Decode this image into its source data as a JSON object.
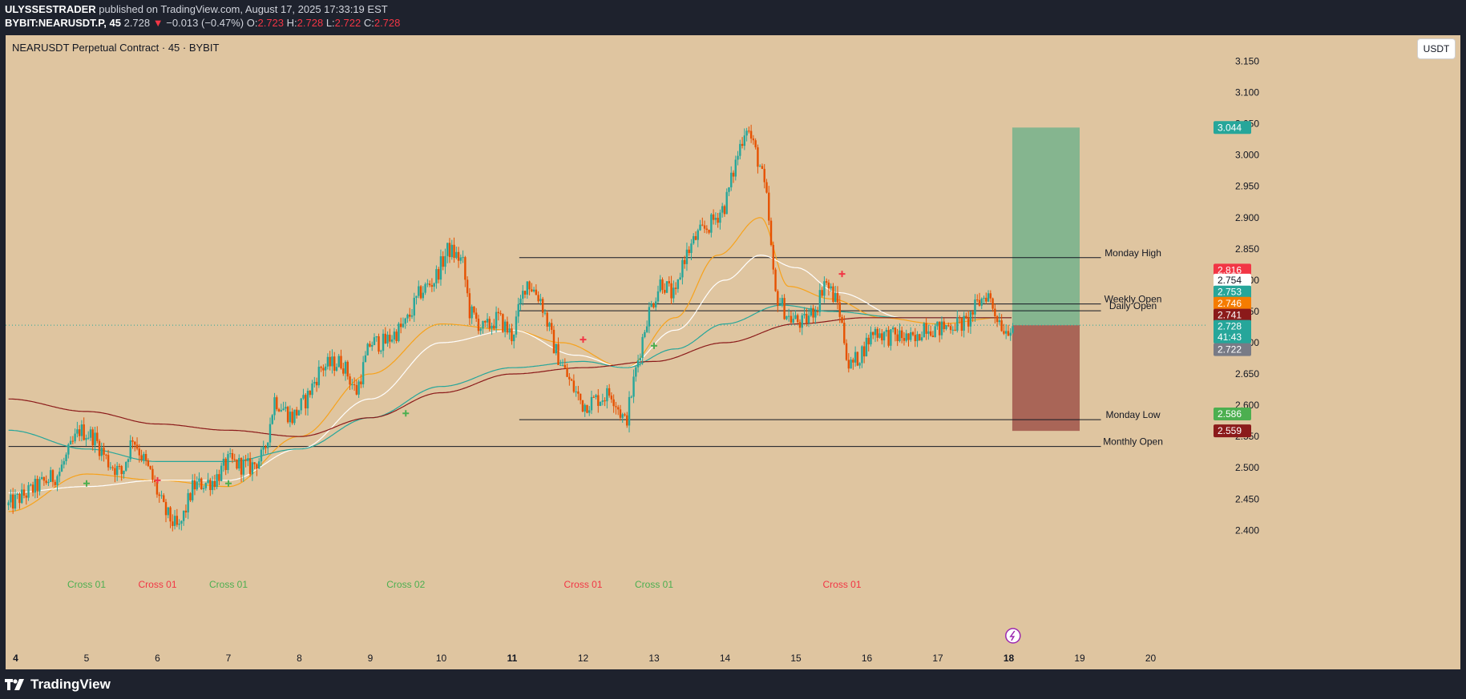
{
  "header": {
    "publisher": "ULYSSESTRADER",
    "published_text": "published on TradingView.com, August 17, 2025 17:33:19 EST",
    "symbol": "BYBIT:NEARUSDT.P, 45",
    "price": "2.728",
    "change_arrow": "▼",
    "change": "−0.013 (−0.47%)",
    "o_label": "O:",
    "o_value": "2.723",
    "h_label": "H:",
    "h_value": "2.728",
    "l_label": "L:",
    "l_value": "2.722",
    "c_label": "C:",
    "c_value": "2.728"
  },
  "chart_title": "NEARUSDT Perpetual Contract · 45 · BYBIT",
  "currency_button": "USDT",
  "branding": "TradingView",
  "colors": {
    "background": "#dfc5a0",
    "up": "#26a69a",
    "down": "#e65100",
    "ma_orange": "#f7a21b",
    "ma_white": "#ffffff",
    "ma_teal": "#26a69a",
    "ma_maroon": "#8b1a1a",
    "cross_up": "#4caf50",
    "cross_down": "#f23645",
    "target_zone": "#7bb38d",
    "stop_zone": "#a35a4f"
  },
  "chart_data": {
    "type": "candlestick",
    "y_range": [
      2.37,
      3.18
    ],
    "y_ticks": [
      "3.150",
      "3.100",
      "3.050",
      "3.000",
      "2.950",
      "2.900",
      "2.850",
      "2.800",
      "2.750",
      "2.700",
      "2.650",
      "2.600",
      "2.550",
      "2.500",
      "2.450",
      "2.400"
    ],
    "x_ticks": [
      {
        "label": "4",
        "day": 4,
        "bold": true
      },
      {
        "label": "5",
        "day": 5
      },
      {
        "label": "6",
        "day": 6
      },
      {
        "label": "7",
        "day": 7
      },
      {
        "label": "8",
        "day": 8
      },
      {
        "label": "9",
        "day": 9
      },
      {
        "label": "10",
        "day": 10
      },
      {
        "label": "11",
        "day": 11,
        "bold": true
      },
      {
        "label": "12",
        "day": 12
      },
      {
        "label": "13",
        "day": 13
      },
      {
        "label": "14",
        "day": 14
      },
      {
        "label": "15",
        "day": 15
      },
      {
        "label": "16",
        "day": 16
      },
      {
        "label": "17",
        "day": 17
      },
      {
        "label": "18",
        "day": 18,
        "bold": true
      },
      {
        "label": "19",
        "day": 19
      },
      {
        "label": "20",
        "day": 20
      }
    ],
    "price_path": [
      [
        3.9,
        2.44
      ],
      [
        4.3,
        2.47
      ],
      [
        4.6,
        2.49
      ],
      [
        4.9,
        2.56
      ],
      [
        5.1,
        2.55
      ],
      [
        5.3,
        2.51
      ],
      [
        5.5,
        2.49
      ],
      [
        5.65,
        2.55
      ],
      [
        5.9,
        2.49
      ],
      [
        6.1,
        2.43
      ],
      [
        6.3,
        2.4
      ],
      [
        6.5,
        2.47
      ],
      [
        6.8,
        2.48
      ],
      [
        7.0,
        2.51
      ],
      [
        7.3,
        2.5
      ],
      [
        7.5,
        2.52
      ],
      [
        7.65,
        2.61
      ],
      [
        7.9,
        2.58
      ],
      [
        8.1,
        2.61
      ],
      [
        8.3,
        2.66
      ],
      [
        8.6,
        2.67
      ],
      [
        8.8,
        2.62
      ],
      [
        9.0,
        2.7
      ],
      [
        9.2,
        2.7
      ],
      [
        9.5,
        2.73
      ],
      [
        9.7,
        2.78
      ],
      [
        9.9,
        2.8
      ],
      [
        10.1,
        2.85
      ],
      [
        10.3,
        2.83
      ],
      [
        10.4,
        2.75
      ],
      [
        10.6,
        2.72
      ],
      [
        10.8,
        2.74
      ],
      [
        11.0,
        2.71
      ],
      [
        11.2,
        2.8
      ],
      [
        11.4,
        2.77
      ],
      [
        11.6,
        2.69
      ],
      [
        11.8,
        2.64
      ],
      [
        12.0,
        2.6
      ],
      [
        12.2,
        2.61
      ],
      [
        12.4,
        2.62
      ],
      [
        12.6,
        2.57
      ],
      [
        12.75,
        2.66
      ],
      [
        12.9,
        2.74
      ],
      [
        13.1,
        2.8
      ],
      [
        13.3,
        2.77
      ],
      [
        13.4,
        2.83
      ],
      [
        13.6,
        2.87
      ],
      [
        13.8,
        2.89
      ],
      [
        14.0,
        2.92
      ],
      [
        14.2,
        3.01
      ],
      [
        14.3,
        3.05
      ],
      [
        14.5,
        2.98
      ],
      [
        14.6,
        2.92
      ],
      [
        14.7,
        2.78
      ],
      [
        14.9,
        2.74
      ],
      [
        15.1,
        2.73
      ],
      [
        15.3,
        2.76
      ],
      [
        15.4,
        2.8
      ],
      [
        15.6,
        2.76
      ],
      [
        15.75,
        2.66
      ],
      [
        15.9,
        2.68
      ],
      [
        16.1,
        2.72
      ],
      [
        16.3,
        2.71
      ],
      [
        16.5,
        2.71
      ],
      [
        16.7,
        2.7
      ],
      [
        16.8,
        2.73
      ],
      [
        17.0,
        2.72
      ],
      [
        17.2,
        2.73
      ],
      [
        17.4,
        2.73
      ],
      [
        17.55,
        2.76
      ],
      [
        17.7,
        2.78
      ],
      [
        17.8,
        2.75
      ],
      [
        17.95,
        2.72
      ],
      [
        18.05,
        2.73
      ]
    ],
    "series": [
      {
        "name": "",
        "color": "#f7a21b",
        "points": [
          [
            3.9,
            2.43
          ],
          [
            5.0,
            2.49
          ],
          [
            6.0,
            2.48
          ],
          [
            7.0,
            2.47
          ],
          [
            8.0,
            2.55
          ],
          [
            9.0,
            2.65
          ],
          [
            10.0,
            2.73
          ],
          [
            11.0,
            2.72
          ],
          [
            11.7,
            2.7
          ],
          [
            12.6,
            2.66
          ],
          [
            13.3,
            2.74
          ],
          [
            13.9,
            2.84
          ],
          [
            14.5,
            2.9
          ],
          [
            14.9,
            2.79
          ],
          [
            15.5,
            2.77
          ],
          [
            16.2,
            2.74
          ],
          [
            17.0,
            2.73
          ],
          [
            17.9,
            2.74
          ],
          [
            18.05,
            2.74
          ]
        ]
      },
      {
        "name": "",
        "color": "#ffffff",
        "points": [
          [
            3.9,
            2.46
          ],
          [
            5.0,
            2.47
          ],
          [
            6.0,
            2.48
          ],
          [
            7.0,
            2.48
          ],
          [
            8.0,
            2.53
          ],
          [
            9.0,
            2.61
          ],
          [
            10.0,
            2.7
          ],
          [
            11.0,
            2.72
          ],
          [
            11.9,
            2.68
          ],
          [
            12.6,
            2.66
          ],
          [
            13.3,
            2.72
          ],
          [
            14.0,
            2.8
          ],
          [
            14.5,
            2.84
          ],
          [
            15.0,
            2.82
          ],
          [
            15.6,
            2.78
          ],
          [
            16.5,
            2.74
          ],
          [
            17.5,
            2.74
          ],
          [
            18.05,
            2.74
          ]
        ]
      },
      {
        "name": "",
        "color": "#26a69a",
        "points": [
          [
            3.9,
            2.56
          ],
          [
            5.0,
            2.53
          ],
          [
            6.0,
            2.51
          ],
          [
            7.0,
            2.51
          ],
          [
            8.0,
            2.53
          ],
          [
            9.0,
            2.58
          ],
          [
            10.0,
            2.63
          ],
          [
            11.0,
            2.66
          ],
          [
            12.0,
            2.67
          ],
          [
            12.6,
            2.66
          ],
          [
            13.3,
            2.69
          ],
          [
            14.0,
            2.73
          ],
          [
            14.8,
            2.76
          ],
          [
            15.5,
            2.75
          ],
          [
            16.5,
            2.74
          ],
          [
            17.5,
            2.74
          ],
          [
            18.05,
            2.74
          ]
        ]
      },
      {
        "name": "",
        "color": "#8b1a1a",
        "points": [
          [
            3.9,
            2.61
          ],
          [
            5.0,
            2.59
          ],
          [
            6.0,
            2.57
          ],
          [
            7.0,
            2.56
          ],
          [
            8.0,
            2.55
          ],
          [
            9.0,
            2.58
          ],
          [
            10.0,
            2.62
          ],
          [
            11.0,
            2.65
          ],
          [
            12.0,
            2.66
          ],
          [
            13.0,
            2.67
          ],
          [
            14.0,
            2.7
          ],
          [
            15.0,
            2.73
          ],
          [
            16.0,
            2.74
          ],
          [
            17.0,
            2.74
          ],
          [
            18.05,
            2.74
          ]
        ]
      }
    ],
    "horizontal_levels": [
      {
        "label": "Monday High",
        "price": 2.836,
        "from_day": 11.1,
        "to_day": 19.3
      },
      {
        "label": "Weekly Open",
        "price": 2.762,
        "from_day": 11.1,
        "to_day": 19.3
      },
      {
        "label": "Daily Open",
        "price": 2.751,
        "from_day": 11.1,
        "to_day": 19.3
      },
      {
        "label": "Monday Low",
        "price": 2.577,
        "from_day": 11.1,
        "to_day": 19.3
      },
      {
        "label": "Monthly Open",
        "price": 2.534,
        "from_day": 3.9,
        "to_day": 19.3
      }
    ],
    "position": {
      "entry": 2.728,
      "target": 3.044,
      "stop": 2.559,
      "from_day": 18.05,
      "to_day": 19.0
    },
    "cross_labels": [
      {
        "text": "Cross 01",
        "day": 5.0,
        "dir": "up"
      },
      {
        "text": "Cross 01",
        "day": 6.0,
        "dir": "down"
      },
      {
        "text": "Cross 01",
        "day": 7.0,
        "dir": "up"
      },
      {
        "text": "Cross 02",
        "day": 9.5,
        "dir": "up"
      },
      {
        "text": "Cross 01",
        "day": 12.0,
        "dir": "down"
      },
      {
        "text": "Cross 01",
        "day": 13.0,
        "dir": "up"
      },
      {
        "text": "Cross 01",
        "day": 15.65,
        "dir": "down"
      }
    ],
    "cross_markers": [
      {
        "day": 5.0,
        "price": 2.475,
        "dir": "up"
      },
      {
        "day": 6.0,
        "price": 2.48,
        "dir": "down"
      },
      {
        "day": 7.0,
        "price": 2.475,
        "dir": "up"
      },
      {
        "day": 9.5,
        "price": 2.587,
        "dir": "up"
      },
      {
        "day": 12.0,
        "price": 2.705,
        "dir": "down"
      },
      {
        "day": 13.0,
        "price": 2.695,
        "dir": "up"
      },
      {
        "day": 15.65,
        "price": 2.81,
        "dir": "down"
      }
    ],
    "price_labels": [
      {
        "text": "3.044",
        "price": 3.044,
        "bg": "#26a69a",
        "fg": "#ffffff"
      },
      {
        "text": "2.816",
        "price": 2.816,
        "bg": "#f23645",
        "fg": "#ffffff"
      },
      {
        "text": "2.754",
        "price": 2.8,
        "bg": "#ffffff",
        "fg": "#131722"
      },
      {
        "text": "2.753",
        "price": 2.781,
        "bg": "#26a69a",
        "fg": "#ffffff"
      },
      {
        "text": "2.746",
        "price": 2.763,
        "bg": "#f57c00",
        "fg": "#ffffff"
      },
      {
        "text": "2.741",
        "price": 2.744,
        "bg": "#8b1a1a",
        "fg": "#ffffff"
      },
      {
        "text": "2.728",
        "price": 2.726,
        "bg": "#26a69a",
        "fg": "#ffffff"
      },
      {
        "text": "41:43",
        "price": 2.709,
        "bg": "#26a69a",
        "fg": "#ffffff"
      },
      {
        "text": "2.722",
        "price": 2.689,
        "bg": "#787b86",
        "fg": "#ffffff"
      },
      {
        "text": "2.586",
        "price": 2.586,
        "bg": "#4caf50",
        "fg": "#ffffff"
      },
      {
        "text": "2.559",
        "price": 2.559,
        "bg": "#8b1a1a",
        "fg": "#ffffff"
      }
    ]
  }
}
